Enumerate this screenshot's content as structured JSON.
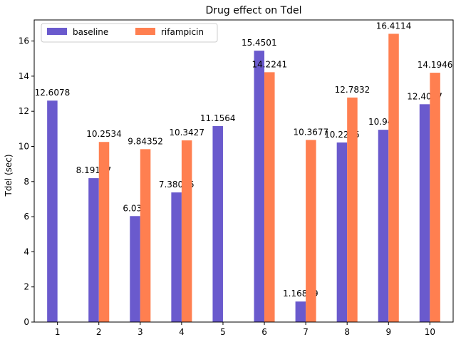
{
  "chart_data": {
    "type": "bar",
    "title": "Drug effect on Tdel",
    "xlabel": "",
    "ylabel": "Tdel (sec)",
    "categories": [
      "1",
      "2",
      "3",
      "4",
      "5",
      "6",
      "7",
      "8",
      "9",
      "10"
    ],
    "ylim": [
      0,
      17.2
    ],
    "yticks": [
      0,
      2,
      4,
      6,
      8,
      10,
      12,
      14,
      16
    ],
    "ytick_labels": [
      "0",
      "2",
      "4",
      "6",
      "8",
      "10",
      "12",
      "14",
      "16"
    ],
    "legend_position": "top-left",
    "series": [
      {
        "name": "baseline",
        "color": "#6a5acd",
        "values": [
          12.6078,
          8.19167,
          6.033,
          7.38016,
          11.1564,
          15.4501,
          1.16849,
          10.2245,
          10.947,
          12.4007
        ],
        "labels": [
          "12.6078",
          "8.19167",
          "6.033",
          "7.38016",
          "11.1564",
          "15.4501",
          "1.16849",
          "10.2245",
          "10.947",
          "12.4007"
        ]
      },
      {
        "name": "rifampicin",
        "color": "#ff7f50",
        "values": [
          null,
          10.2534,
          9.84352,
          10.3427,
          null,
          14.2241,
          10.3677,
          12.7832,
          16.4114,
          14.1946
        ],
        "labels": [
          "",
          "10.2534",
          "9.84352",
          "10.3427",
          "",
          "14.2241",
          "10.3677",
          "12.7832",
          "16.4114",
          "14.1946"
        ]
      }
    ]
  }
}
